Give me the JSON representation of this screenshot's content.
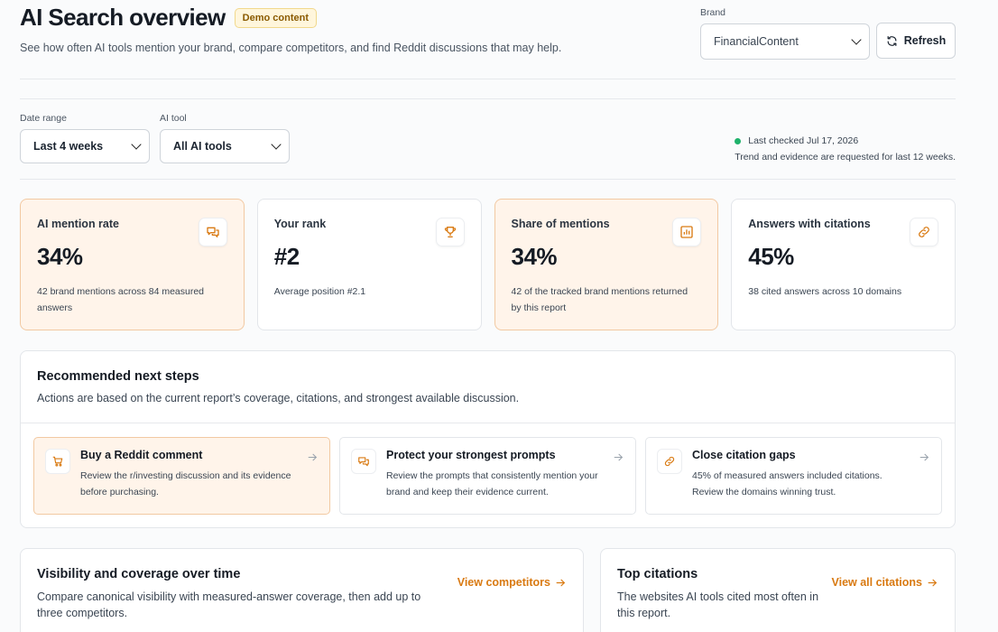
{
  "header": {
    "title": "AI Search overview",
    "badge": "Demo content",
    "subtitle": "See how often AI tools mention your brand, compare competitors, and find Reddit discussions that may help.",
    "brand_label": "Brand",
    "brand_value": "FinancialContent",
    "refresh_label": "Refresh"
  },
  "filters": {
    "date_label": "Date range",
    "date_value": "Last 4 weeks",
    "tool_label": "AI tool",
    "tool_value": "All AI tools",
    "last_checked": "Last checked Jul 17, 2026",
    "trend_note": "Trend and evidence are requested for last 12 weeks."
  },
  "metrics": [
    {
      "label": "AI mention rate",
      "value": "34%",
      "note": "42 brand mentions across 84 measured answers",
      "icon": "chat-bubbles-icon",
      "highlight": true
    },
    {
      "label": "Your rank",
      "value": "#2",
      "note": "Average position #2.1",
      "icon": "trophy-icon",
      "highlight": false
    },
    {
      "label": "Share of mentions",
      "value": "34%",
      "note": "42 of the tracked brand mentions returned by this report",
      "icon": "bar-chart-icon",
      "highlight": true
    },
    {
      "label": "Answers with citations",
      "value": "45%",
      "note": "38 cited answers across 10 domains",
      "icon": "link-icon",
      "highlight": false
    }
  ],
  "recommended": {
    "title": "Recommended next steps",
    "subtitle": "Actions are based on the current report’s coverage, citations, and strongest available discussion.",
    "cards": [
      {
        "title": "Buy a Reddit comment",
        "desc": "Review the r/investing discussion and its evidence before purchasing.",
        "icon": "cart-icon",
        "highlight": true
      },
      {
        "title": "Protect your strongest prompts",
        "desc": "Review the prompts that consistently mention your brand and keep their evidence current.",
        "icon": "chat-bubbles-icon",
        "highlight": false
      },
      {
        "title": "Close citation gaps",
        "desc": "45% of measured answers included citations. Review the domains winning trust.",
        "icon": "link-icon",
        "highlight": false
      }
    ]
  },
  "visibility": {
    "title": "Visibility and coverage over time",
    "subtitle": "Compare canonical visibility with measured-answer coverage, then add up to three competitors.",
    "link": "View competitors"
  },
  "citations": {
    "title": "Top citations",
    "subtitle": "The websites AI tools cited most often in this report.",
    "link": "View all citations"
  },
  "colors": {
    "accent": "#d97a12",
    "highlight_bg": "#fff4ea",
    "status_green": "#1fb26b"
  }
}
